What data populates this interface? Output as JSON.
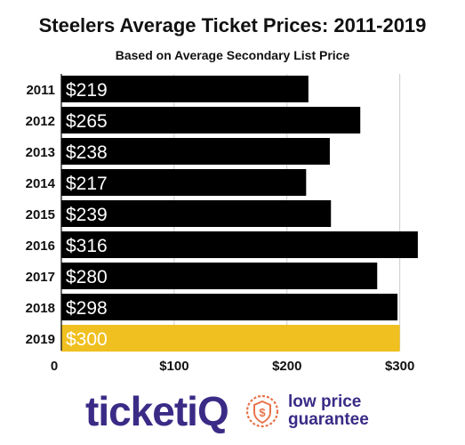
{
  "chart_data": {
    "type": "bar",
    "orientation": "horizontal",
    "title": "Steelers Average Ticket Prices: 2011-2019",
    "subtitle": "Based on Average Secondary List Price",
    "categories": [
      "2011",
      "2012",
      "2013",
      "2014",
      "2015",
      "2016",
      "2017",
      "2018",
      "2019"
    ],
    "values": [
      219,
      265,
      238,
      217,
      239,
      316,
      280,
      298,
      300
    ],
    "value_labels": [
      "$219",
      "$265",
      "$238",
      "$217",
      "$239",
      "$316",
      "$280",
      "$298",
      "$300"
    ],
    "x_ticks": [
      0,
      100,
      200,
      300
    ],
    "x_tick_labels": [
      "0",
      "$100",
      "$200",
      "$300"
    ],
    "xlim": [
      0,
      320
    ],
    "grid": true,
    "colors": {
      "bar": "#000000",
      "highlight": "#f0c020",
      "label": "#ffffff",
      "grid": "#cccccc"
    },
    "highlight_index": 8
  },
  "brand": {
    "name_prefix": "ticket",
    "name_suffix": "iQ",
    "tagline_line1": "low price",
    "tagline_line2": "guarantee",
    "seal_icon": "dollar-shield-icon",
    "color": "#3b2b86"
  }
}
